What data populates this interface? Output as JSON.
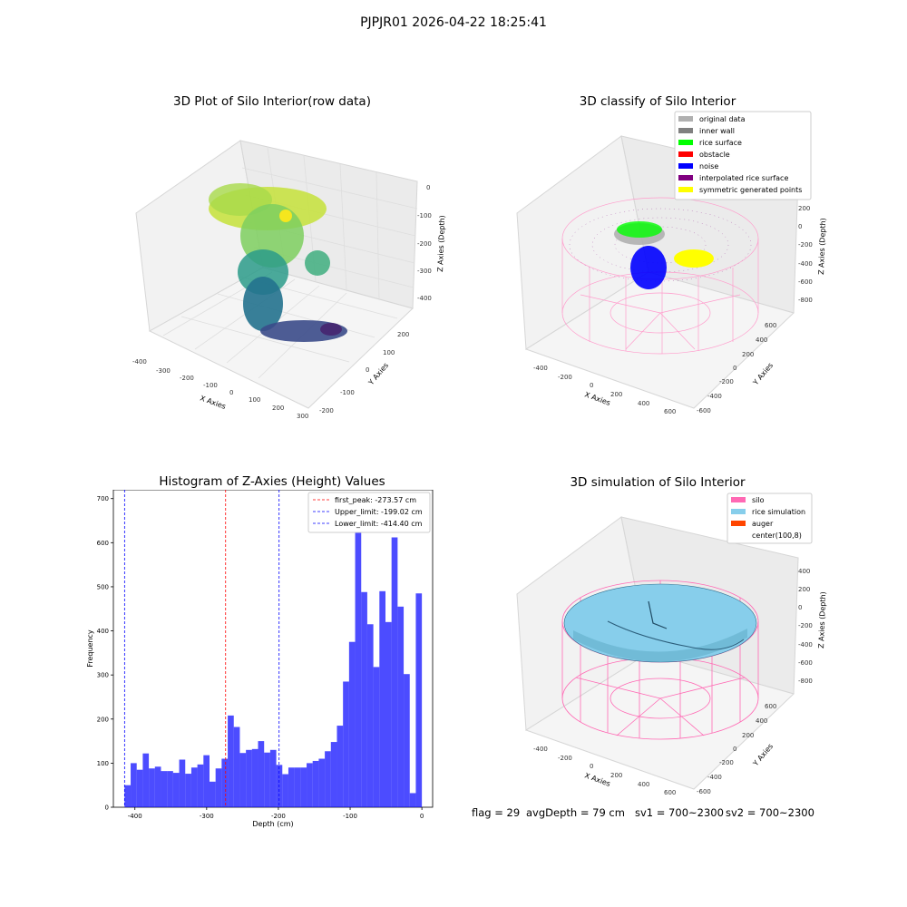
{
  "figure": {
    "suptitle": "PJPJR01 2026-04-22 18:25:41"
  },
  "colors": {
    "original_data": "#b0b0b0",
    "inner_wall": "#808080",
    "rice_surface": "#00ff00",
    "obstacle": "#ff0000",
    "noise": "#0000ff",
    "interpolated_rice_surface": "#800080",
    "symmetric_generated_points": "#ffff00",
    "silo": "#ff69b4",
    "rice_simulation": "#87ceeb",
    "auger": "#ff4500",
    "histogram": "#0000ff",
    "first_peak": "#ff0000"
  },
  "chart_data": [
    {
      "type": "scatter",
      "title": "3D Plot of Silo Interior(row data)",
      "xlabel": "X Axies",
      "ylabel": "Y Axies",
      "zlabel": "Z Axies (Depth)",
      "x_ticks": [
        -400,
        -300,
        -200,
        -100,
        0,
        100,
        200,
        300
      ],
      "y_ticks": [
        -200,
        -100,
        0,
        100,
        200
      ],
      "z_ticks": [
        0,
        -100,
        -200,
        -300,
        -400
      ],
      "colormap": "viridis"
    },
    {
      "type": "scatter",
      "title": "3D classify of Silo Interior",
      "zlabel": "Z Axies (Depth)",
      "xlabel": "X Axies",
      "ylabel": "Y Axies",
      "x_ticks": [
        -400,
        -200,
        0,
        200,
        400,
        600
      ],
      "y_ticks": [
        600,
        400,
        200,
        0,
        -200,
        -400,
        -600
      ],
      "z_ticks": [
        200,
        0,
        -200,
        -400,
        -600,
        -800
      ],
      "legend": [
        {
          "label": "original data",
          "color": "#b0b0b0"
        },
        {
          "label": "inner wall",
          "color": "#808080"
        },
        {
          "label": "rice surface",
          "color": "#00ff00"
        },
        {
          "label": "obstacle",
          "color": "#ff0000"
        },
        {
          "label": "noise",
          "color": "#0000ff"
        },
        {
          "label": "interpolated rice surface",
          "color": "#800080"
        },
        {
          "label": "symmetric generated points",
          "color": "#ffff00"
        }
      ],
      "legend_position": "top-right"
    },
    {
      "type": "bar",
      "title": "Histogram of Z-Axies (Height) Values",
      "xlabel": "Depth (cm)",
      "ylabel": "Frequency",
      "bin_start": -414.4,
      "bin_end": 0,
      "values": [
        50,
        100,
        85,
        122,
        88,
        92,
        82,
        82,
        78,
        108,
        76,
        90,
        97,
        118,
        58,
        88,
        110,
        208,
        182,
        123,
        130,
        132,
        150,
        124,
        130,
        96,
        75,
        90,
        90,
        90,
        100,
        105,
        110,
        127,
        148,
        185,
        285,
        375,
        680,
        488,
        415,
        318,
        490,
        420,
        612,
        455,
        302,
        32,
        485
      ],
      "xlim": [
        -430,
        15
      ],
      "ylim": [
        0,
        720
      ],
      "x_ticks": [
        -400,
        -300,
        -200,
        -100,
        0
      ],
      "y_ticks": [
        0,
        100,
        200,
        300,
        400,
        500,
        600,
        700
      ],
      "vlines": [
        {
          "x": -273.57,
          "label": "first_peak: -273.57 cm",
          "color": "#ff0000"
        },
        {
          "x": -199.02,
          "label": "Upper_limit: -199.02 cm",
          "color": "#0000ff"
        },
        {
          "x": -414.4,
          "label": "Lower_limit: -414.40 cm",
          "color": "#0000ff"
        }
      ],
      "legend_position": "top-right"
    },
    {
      "type": "scatter",
      "title": "3D simulation of Silo Interior",
      "xlabel": "X Axies",
      "ylabel": "Y Axies",
      "zlabel": "Z Axies (Depth)",
      "x_ticks": [
        -400,
        -200,
        0,
        200,
        400,
        600
      ],
      "y_ticks": [
        600,
        400,
        200,
        0,
        -200,
        -400,
        -600
      ],
      "z_ticks": [
        400,
        200,
        0,
        -200,
        -400,
        -600,
        -800
      ],
      "legend": [
        {
          "label": "silo",
          "color": "#ff69b4"
        },
        {
          "label": "rice simulation",
          "color": "#87ceeb"
        },
        {
          "label": "auger",
          "color": "#ff4500"
        },
        {
          "label": "center(100,8)",
          "color": "#ffffff"
        }
      ],
      "legend_position": "top-right"
    }
  ],
  "footer": {
    "flag": "flag = 29",
    "avg_depth": "avgDepth = 79 cm",
    "sv1": "sv1 = 700~2300",
    "sv2": "sv2 = 700~2300"
  }
}
